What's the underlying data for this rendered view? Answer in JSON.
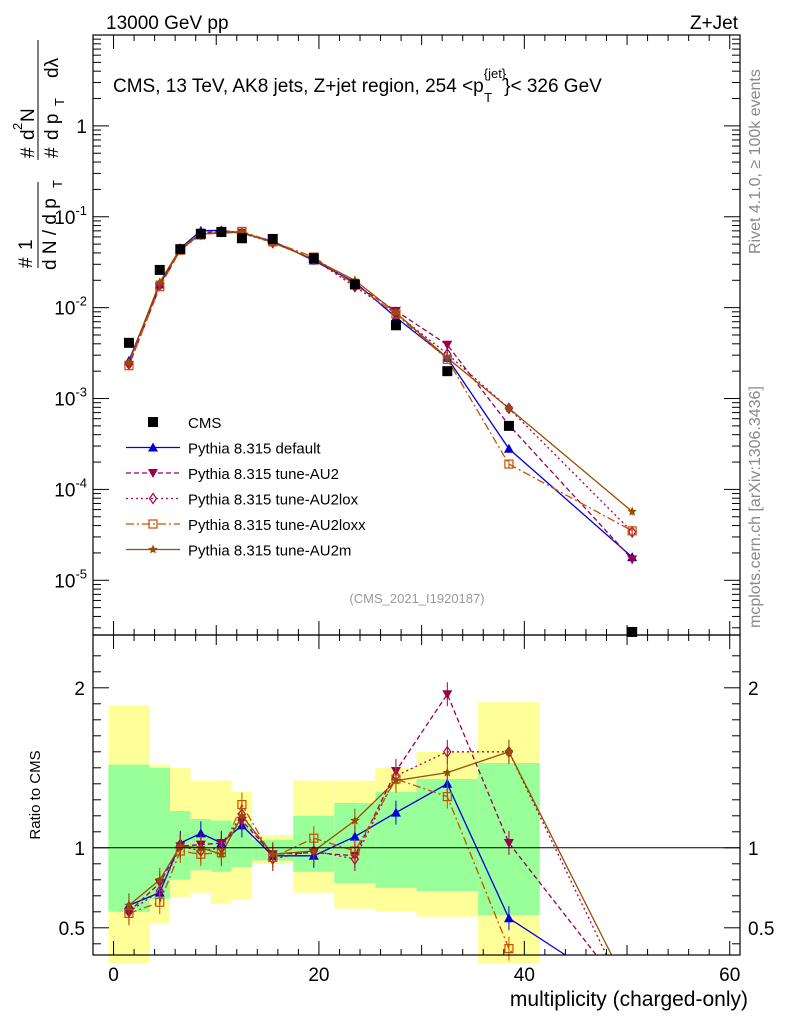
{
  "header": {
    "energy_label": "13000 GeV pp",
    "process_label": "Z+Jet",
    "rivet_label": "Rivet 4.1.0, ≥ 100k events",
    "mcplots_label": "mcplots.cern.ch [arXiv:1306.3436]"
  },
  "chart_data": {
    "type": "line",
    "title": "CMS, 13 TeV, AK8 jets, Z+jet region, 254 <p_T^{jet}< 326 GeV",
    "title_main": "CMS, 13 TeV, AK8 jets, Z+jet region, 254 <p",
    "title_sup": "{jet}",
    "title_sub": "T",
    "title_tail": "}< 326 GeV",
    "analysis_tag": "(CMS_2021_I1920187)",
    "xlabel": "multiplicity (charged-only)",
    "ylabel_main": "1/N dN/dpT d²N/dpT dλ",
    "ylabel_ratio": "Ratio to CMS",
    "xlim": [
      -2,
      61
    ],
    "ylim_main": [
      2.5e-06,
      10
    ],
    "ylim_ratio": [
      0.33,
      2.33
    ],
    "x_ticks": [
      0,
      20,
      40,
      60
    ],
    "x_tick_labels": [
      "0",
      "20",
      "40",
      "60"
    ],
    "y_ticks_main": [
      {
        "exp": "-5",
        "value": 1e-05
      },
      {
        "exp": "-4",
        "value": 0.0001
      },
      {
        "exp": "-3",
        "value": 0.001
      },
      {
        "exp": "-2",
        "value": 0.01
      },
      {
        "exp": "-1",
        "value": 0.1
      },
      {
        "exp": "",
        "value": 1
      }
    ],
    "y_ticks_ratio": [
      {
        "label": "0.5",
        "value": 0.5
      },
      {
        "label": "1",
        "value": 1
      },
      {
        "label": "2",
        "value": 2
      }
    ],
    "data": {
      "name": "CMS",
      "x": [
        1.5,
        4.5,
        6.5,
        8.5,
        10.5,
        12.5,
        15.5,
        19.5,
        23.5,
        27.5,
        32.5,
        38.5,
        50.5
      ],
      "y": [
        0.0041,
        0.026,
        0.044,
        0.065,
        0.068,
        0.058,
        0.057,
        0.035,
        0.018,
        0.0064,
        0.002,
        0.0005,
        2.7e-06
      ]
    },
    "bands": {
      "bins": [
        [
          -0.5,
          3.5
        ],
        [
          3.5,
          5.5
        ],
        [
          5.5,
          7.5
        ],
        [
          7.5,
          9.5
        ],
        [
          9.5,
          11.5
        ],
        [
          11.5,
          13.5
        ],
        [
          13.5,
          17.5
        ],
        [
          17.5,
          21.5
        ],
        [
          21.5,
          25.5
        ],
        [
          25.5,
          29.5
        ],
        [
          29.5,
          35.5
        ],
        [
          35.5,
          41.5
        ]
      ],
      "inner": [
        [
          0.6,
          1.52
        ],
        [
          0.68,
          1.5
        ],
        [
          0.8,
          1.23
        ],
        [
          0.86,
          1.18
        ],
        [
          0.85,
          1.17
        ],
        [
          0.88,
          1.15
        ],
        [
          0.92,
          1.05
        ],
        [
          0.85,
          1.2
        ],
        [
          0.78,
          1.28
        ],
        [
          0.75,
          1.35
        ],
        [
          0.73,
          1.43
        ],
        [
          0.58,
          1.53
        ]
      ],
      "outer": [
        [
          0.28,
          1.89
        ],
        [
          0.53,
          1.52
        ],
        [
          0.69,
          1.5
        ],
        [
          0.72,
          1.42
        ],
        [
          0.65,
          1.42
        ],
        [
          0.68,
          1.35
        ],
        [
          0.9,
          1.08
        ],
        [
          0.72,
          1.42
        ],
        [
          0.62,
          1.42
        ],
        [
          0.6,
          1.5
        ],
        [
          0.57,
          1.6
        ],
        [
          0.28,
          1.91
        ]
      ]
    },
    "series": [
      {
        "name": "Pythia 8.315 default",
        "color": "#0000dd",
        "dash": "",
        "marker": "triangle-up",
        "x": [
          1.5,
          4.5,
          6.5,
          8.5,
          10.5,
          12.5,
          15.5,
          19.5,
          23.5,
          27.5,
          32.5,
          38.5,
          50.5
        ],
        "y": [
          0.0026,
          0.018,
          0.045,
          0.07,
          0.071,
          0.066,
          0.054,
          0.033,
          0.019,
          0.0078,
          0.0028,
          0.00028,
          1.8e-05
        ],
        "ratio_x": [
          1.5,
          4.5,
          6.5,
          8.5,
          10.5,
          12.5,
          15.5,
          19.5,
          23.5,
          27.5,
          32.5,
          38.5,
          44.0
        ],
        "ratio": [
          0.64,
          0.72,
          1.03,
          1.09,
          1.03,
          1.14,
          0.95,
          0.95,
          1.07,
          1.22,
          1.4,
          0.56,
          0.0
        ]
      },
      {
        "name": "Pythia 8.315 tune-AU2",
        "color": "#99004d",
        "dash": "5 3",
        "marker": "triangle-down",
        "x": [
          1.5,
          4.5,
          6.5,
          8.5,
          10.5,
          12.5,
          15.5,
          19.5,
          23.5,
          27.5,
          32.5,
          38.5,
          50.5
        ],
        "y": [
          0.0023,
          0.017,
          0.043,
          0.066,
          0.07,
          0.067,
          0.053,
          0.034,
          0.018,
          0.0092,
          0.0039,
          0.00051,
          1.7e-05
        ],
        "ratio_x": [
          1.5,
          4.5,
          6.5,
          8.5,
          10.5,
          12.5,
          15.5,
          19.5,
          23.5,
          27.5,
          32.5,
          38.5,
          47.0
        ],
        "ratio": [
          0.6,
          0.78,
          1.01,
          1.02,
          1.03,
          1.17,
          0.96,
          0.97,
          0.95,
          1.48,
          1.96,
          1.03,
          0.0
        ]
      },
      {
        "name": "Pythia 8.315 tune-AU2lox",
        "color": "#a6004d",
        "dash": "2 3",
        "marker": "diamond-open",
        "x": [
          1.5,
          4.5,
          6.5,
          8.5,
          10.5,
          12.5,
          15.5,
          19.5,
          23.5,
          27.5,
          32.5,
          38.5,
          50.5
        ],
        "y": [
          0.0024,
          0.018,
          0.044,
          0.064,
          0.069,
          0.066,
          0.052,
          0.034,
          0.017,
          0.0086,
          0.0031,
          0.00078,
          3.4e-05
        ],
        "ratio_x": [
          1.5,
          4.5,
          6.5,
          8.5,
          10.5,
          12.5,
          15.5,
          19.5,
          23.5,
          27.5,
          32.5,
          38.5,
          48.0
        ],
        "ratio": [
          0.6,
          0.73,
          1.01,
          0.98,
          1.0,
          1.21,
          0.93,
          0.98,
          0.93,
          1.45,
          1.6,
          1.6,
          0.0
        ]
      },
      {
        "name": "Pythia 8.315 tune-AU2loxx",
        "color": "#cc4d00",
        "dash": "8 3 2 3",
        "marker": "square-open",
        "x": [
          1.5,
          4.5,
          6.5,
          8.5,
          10.5,
          12.5,
          15.5,
          19.5,
          23.5,
          27.5,
          32.5,
          38.5,
          50.5
        ],
        "y": [
          0.0023,
          0.017,
          0.043,
          0.063,
          0.068,
          0.069,
          0.053,
          0.036,
          0.018,
          0.0085,
          0.0027,
          0.00019,
          3.5e-05
        ],
        "ratio_x": [
          1.5,
          4.5,
          6.5,
          8.5,
          10.5,
          12.5,
          15.5,
          19.5,
          23.5,
          27.5,
          32.5,
          38.5,
          39.0
        ],
        "ratio": [
          0.59,
          0.66,
          0.98,
          0.96,
          0.97,
          1.27,
          0.94,
          1.06,
          0.98,
          1.43,
          1.32,
          0.37,
          0.0
        ]
      },
      {
        "name": "Pythia 8.315 tune-AU2m",
        "color": "#994d00",
        "dash": "",
        "marker": "star",
        "x": [
          1.5,
          4.5,
          6.5,
          8.5,
          10.5,
          12.5,
          15.5,
          19.5,
          23.5,
          27.5,
          32.5,
          38.5,
          50.5
        ],
        "y": [
          0.0025,
          0.019,
          0.045,
          0.065,
          0.066,
          0.068,
          0.052,
          0.034,
          0.02,
          0.0088,
          0.0028,
          0.00078,
          5.7e-05
        ],
        "ratio_x": [
          1.5,
          4.5,
          6.5,
          8.5,
          10.5,
          12.5,
          15.5,
          19.5,
          23.5,
          27.5,
          32.5,
          38.5,
          48.5
        ],
        "ratio": [
          0.64,
          0.8,
          1.01,
          1.0,
          0.96,
          1.2,
          0.96,
          0.98,
          1.17,
          1.42,
          1.47,
          1.6,
          0.0
        ]
      }
    ]
  }
}
